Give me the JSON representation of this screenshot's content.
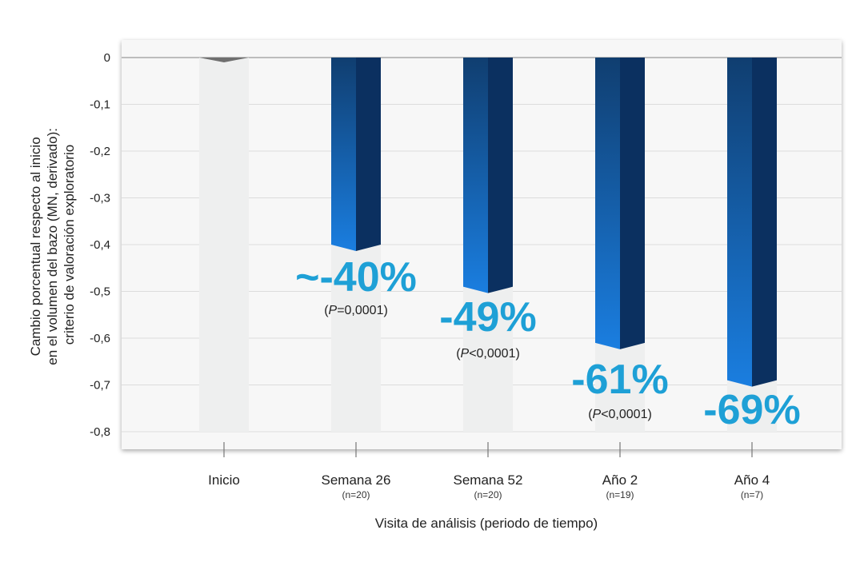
{
  "chart_data": {
    "type": "bar",
    "categories": [
      "Inicio",
      "Semana 26",
      "Semana 52",
      "Año 2",
      "Año 4"
    ],
    "category_n": [
      "",
      "(n=20)",
      "(n=20)",
      "(n=19)",
      "(n=7)"
    ],
    "values": [
      0,
      -0.4,
      -0.49,
      -0.61,
      -0.69
    ],
    "pct_labels": [
      "",
      "~-40%",
      "-49%",
      "-61%",
      "-69%"
    ],
    "p_labels": [
      {
        "italic": "",
        "rest": ""
      },
      {
        "italic": "P",
        "rest": "=0,0001"
      },
      {
        "italic": "P",
        "rest": "<0,0001"
      },
      {
        "italic": "P",
        "rest": "<0,0001"
      },
      {
        "italic": "",
        "rest": ""
      }
    ],
    "ylim": [
      -0.8,
      0
    ],
    "yticks": [
      0,
      -0.1,
      -0.2,
      -0.3,
      -0.4,
      -0.5,
      -0.6,
      -0.7,
      -0.8
    ],
    "ytick_labels": [
      "0",
      "-0,1",
      "-0,2",
      "-0,3",
      "-0,4",
      "-0,5",
      "-0,6",
      "-0,7",
      "-0,8"
    ],
    "xlabel": "Visita de análisis (periodo de tiempo)",
    "ylabel_lines": [
      "Cambio porcentual respecto al inicio",
      "en el volumen del bazo (MN, derivado):",
      "criterio de valoración exploratorio"
    ],
    "grid": true,
    "colors": {
      "bar_front_top": "#103e70",
      "bar_front_bottom": "#1a7ee0",
      "bar_side": "#0b3060",
      "pct": "#1ea0d6",
      "gridline": "#dcdcdc",
      "plot_bg": "#f7f7f7"
    }
  }
}
